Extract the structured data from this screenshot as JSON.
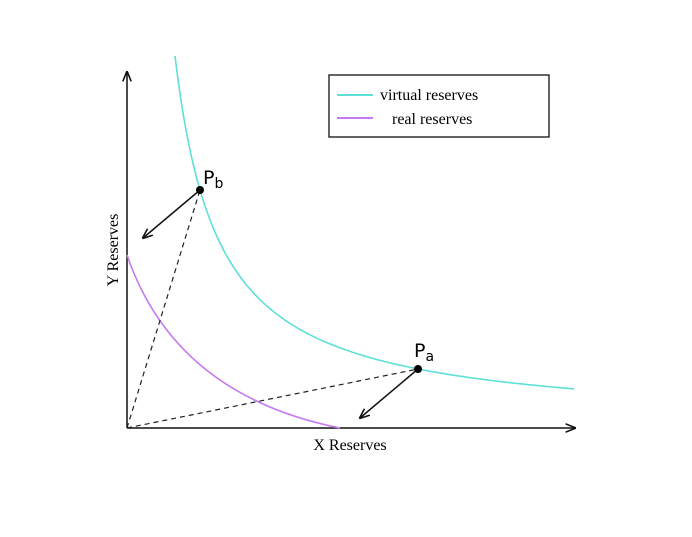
{
  "legend": {
    "items": [
      "virtual reserves",
      "real reserves"
    ]
  },
  "axes": {
    "x_label": "X Reserves",
    "y_label": "Y Reserves"
  },
  "points": [
    {
      "label": "P",
      "subscript": "b"
    },
    {
      "label": "P",
      "subscript": "a"
    }
  ]
}
